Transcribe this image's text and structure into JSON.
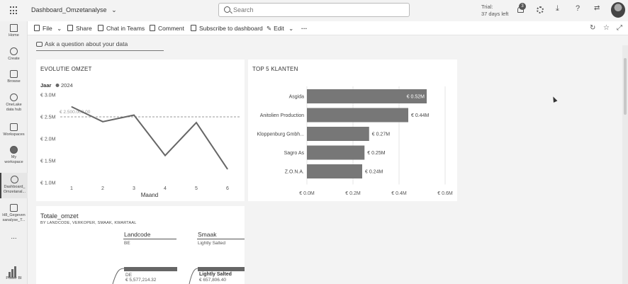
{
  "header": {
    "report_name": "Dashboard_Omzetanalyse",
    "search_placeholder": "Search",
    "trial_line1": "Trial:",
    "trial_line2": "37 days left",
    "notification_count": "3"
  },
  "left_nav": {
    "items": [
      {
        "label": "Home",
        "icon": "home-icon"
      },
      {
        "label": "Create",
        "icon": "plus-circle-icon"
      },
      {
        "label": "Browse",
        "icon": "folder-icon"
      },
      {
        "label": "OneLake data hub",
        "icon": "onelake-icon"
      },
      {
        "label": "Workspaces",
        "icon": "workspaces-icon"
      },
      {
        "label": "My workspace",
        "icon": "my-workspace-icon"
      },
      {
        "label": "Dashboard_ Omzetanal...",
        "icon": "dashboard-icon"
      },
      {
        "label": "H8_Gegeven sanalyse_T...",
        "icon": "report-icon"
      },
      {
        "label": "...",
        "icon": "more-icon"
      }
    ],
    "brand": "Power BI"
  },
  "toolbar": {
    "file": "File",
    "share": "Share",
    "chat": "Chat in Teams",
    "comment": "Comment",
    "subscribe": "Subscribe to dashboard",
    "edit": "Edit",
    "more": "···"
  },
  "qna": {
    "placeholder": "Ask a question about your data"
  },
  "tile_line": {
    "title": "EVOLUTIE OMZET",
    "legend_title": "Jaar",
    "legend_item": "2024",
    "reference_label": "€ 2.500.000,00"
  },
  "tile_bar": {
    "title": "TOP 5 KLANTEN"
  },
  "tile_decomp": {
    "title": "Totale_omzet",
    "subtitle": "BY LANDCODE, VERKOPER, SMAAK, KWARTAAL",
    "col1_header": "Landcode",
    "col1_value": "BE",
    "col2_header": "Smaak",
    "col2_value": "Lightly Salted",
    "node1_label": "DE",
    "node1_value": "€ 5,577,214.32",
    "node2_label": "Lightly Salted",
    "node2_value": "€ 657,806.40"
  },
  "chart_data": [
    {
      "type": "line",
      "title": "EVOLUTIE OMZET",
      "xlabel": "Maand",
      "ylabel": "",
      "x": [
        1,
        2,
        3,
        4,
        5,
        6
      ],
      "series": [
        {
          "name": "2024",
          "values": [
            2.73,
            2.39,
            2.54,
            1.62,
            2.37,
            1.31
          ]
        }
      ],
      "reference_line": 2.5,
      "ylim": [
        1.0,
        3.0
      ],
      "yticks": [
        "€ 1.0M",
        "€ 1.5M",
        "€ 2.0M",
        "€ 2.5M",
        "€ 3.0M"
      ],
      "xticks": [
        "1",
        "2",
        "3",
        "4",
        "5",
        "6"
      ],
      "legend": "top-left",
      "color": "#666666"
    },
    {
      "type": "bar",
      "orientation": "horizontal",
      "title": "TOP 5 KLANTEN",
      "categories": [
        "Asgida",
        "Anitolien Production",
        "Kloppenburg Gmbh...",
        "Sagro As",
        "Z.O.N.A."
      ],
      "values": [
        0.52,
        0.44,
        0.27,
        0.25,
        0.24
      ],
      "data_labels": [
        "€ 0.52M",
        "€ 0.44M",
        "€ 0.27M",
        "€ 0.25M",
        "€ 0.24M"
      ],
      "xlim": [
        0,
        0.6
      ],
      "xticks": [
        "€ 0.0M",
        "€ 0.2M",
        "€ 0.4M",
        "€ 0.6M"
      ],
      "color": "#777777"
    }
  ]
}
